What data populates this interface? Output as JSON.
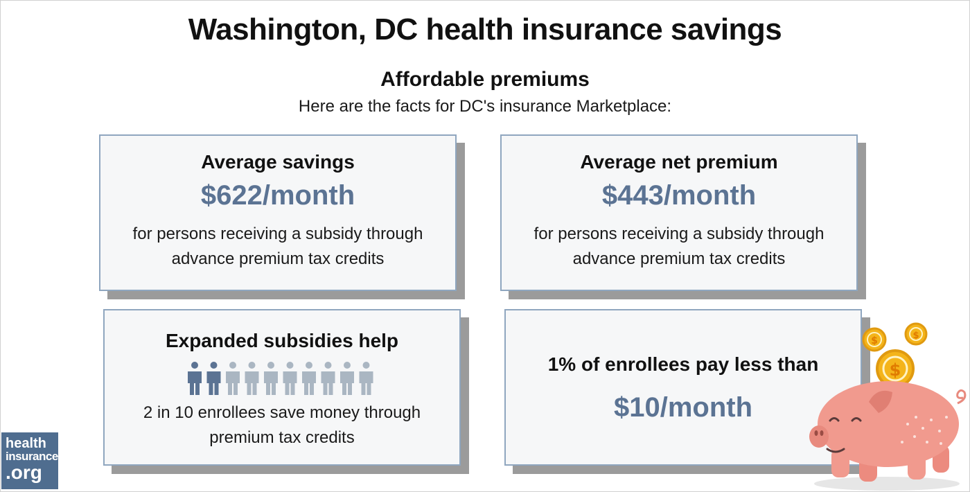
{
  "page": {
    "title": "Washington, DC health insurance savings",
    "subtitle": "Affordable premiums",
    "intro": "Here are the facts for DC's insurance Marketplace:"
  },
  "cards": [
    {
      "heading": "Average savings",
      "value": "$622/month",
      "desc_line1": "for persons receiving a subsidy through",
      "desc_line2": "advance premium tax credits"
    },
    {
      "heading": "Average net premium",
      "value": "$443/month",
      "desc_line1": "for persons receiving a subsidy through",
      "desc_line2": "advance premium tax credits"
    },
    {
      "heading": "Expanded subsidies help",
      "people_total": 10,
      "people_highlighted": 2,
      "desc_line1": "2 in 10 enrollees save money through",
      "desc_line2": "premium tax credits"
    },
    {
      "heading": "1% of enrollees pay less than",
      "value": "$10/month"
    }
  ],
  "logo": {
    "line1": "health",
    "line2": "insurance",
    "line3": ".org"
  },
  "colors": {
    "accent": "#5b7393",
    "card_border": "#8fa6bf",
    "card_bg": "#f6f7f8",
    "shadow": "#9b9b9b",
    "person_highlight": "#5b7393",
    "person_dim": "#aab6c2",
    "logo_bg": "#4f6d8f",
    "pig": "#f19a8e",
    "coin": "#f4b41a"
  },
  "icons": {
    "person": "person-icon",
    "illustration": "piggy-bank-icon",
    "coin": "dollar-coin-icon"
  }
}
